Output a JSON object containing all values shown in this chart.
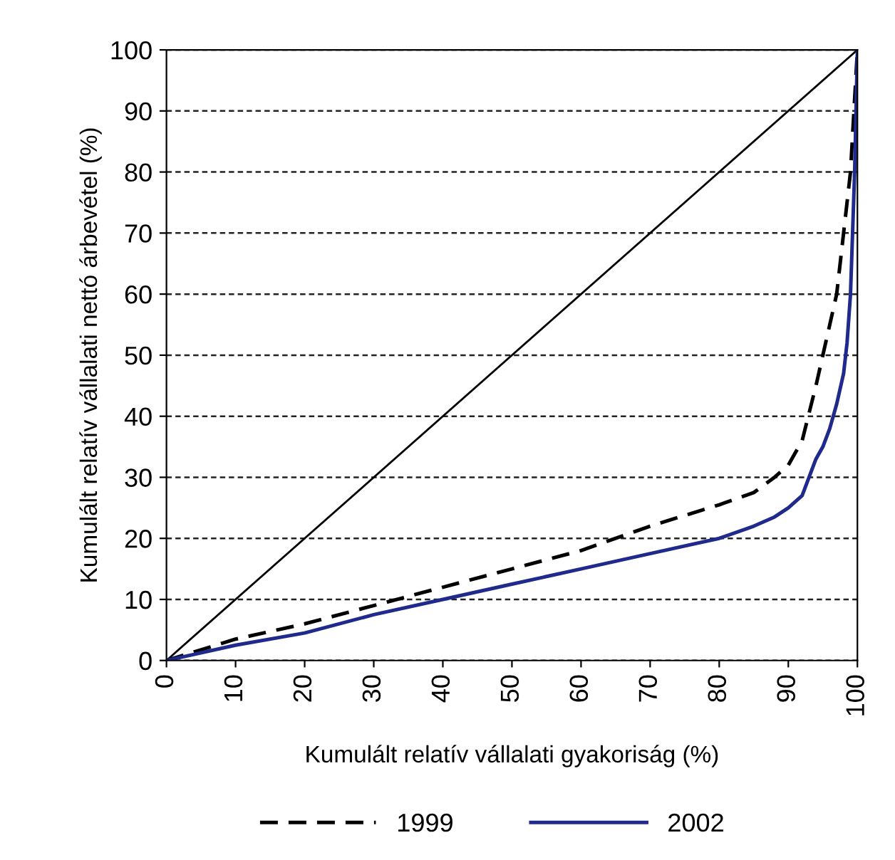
{
  "chart_data": {
    "type": "line",
    "xlabel": "Kumulált relatív vállalati gyakoriság (%)",
    "ylabel": "Kumulált relatív vállalati nettó árbevétel (%)",
    "xlim": [
      0,
      100
    ],
    "ylim": [
      0,
      100
    ],
    "xticks": [
      0,
      10,
      20,
      30,
      40,
      50,
      60,
      70,
      80,
      90,
      100
    ],
    "yticks": [
      0,
      10,
      20,
      30,
      40,
      50,
      60,
      70,
      80,
      90,
      100
    ],
    "grid": "y",
    "legend": "bottom",
    "marker": "none",
    "series": [
      {
        "x": [
          0,
          100
        ],
        "values": [
          0,
          100
        ],
        "color": "#000000",
        "line_style": "solid"
      },
      {
        "name": "1999",
        "color": "#000000",
        "line_style": "dashed",
        "x": [
          0,
          10,
          20,
          30,
          40,
          50,
          60,
          70,
          80,
          85,
          88,
          90,
          92,
          94,
          95,
          96,
          97,
          98,
          99,
          99.5,
          100
        ],
        "values": [
          0,
          3.5,
          6,
          9,
          12,
          15,
          18,
          22,
          25.5,
          27.5,
          30,
          32,
          36,
          45,
          50,
          55,
          60,
          70,
          80,
          90,
          100
        ]
      },
      {
        "name": "2002",
        "color": "#1f2a8c",
        "line_style": "solid",
        "x": [
          0,
          10,
          20,
          30,
          40,
          50,
          60,
          70,
          80,
          85,
          88,
          90,
          92,
          93,
          94,
          95,
          96,
          97,
          98,
          98.5,
          99,
          99.3,
          99.6,
          100
        ],
        "values": [
          0,
          2.5,
          4.5,
          7.5,
          10,
          12.5,
          15,
          17.5,
          20,
          22,
          23.5,
          25,
          27,
          30,
          33,
          35,
          38,
          42,
          47,
          52,
          60,
          70,
          80,
          100
        ]
      }
    ]
  }
}
